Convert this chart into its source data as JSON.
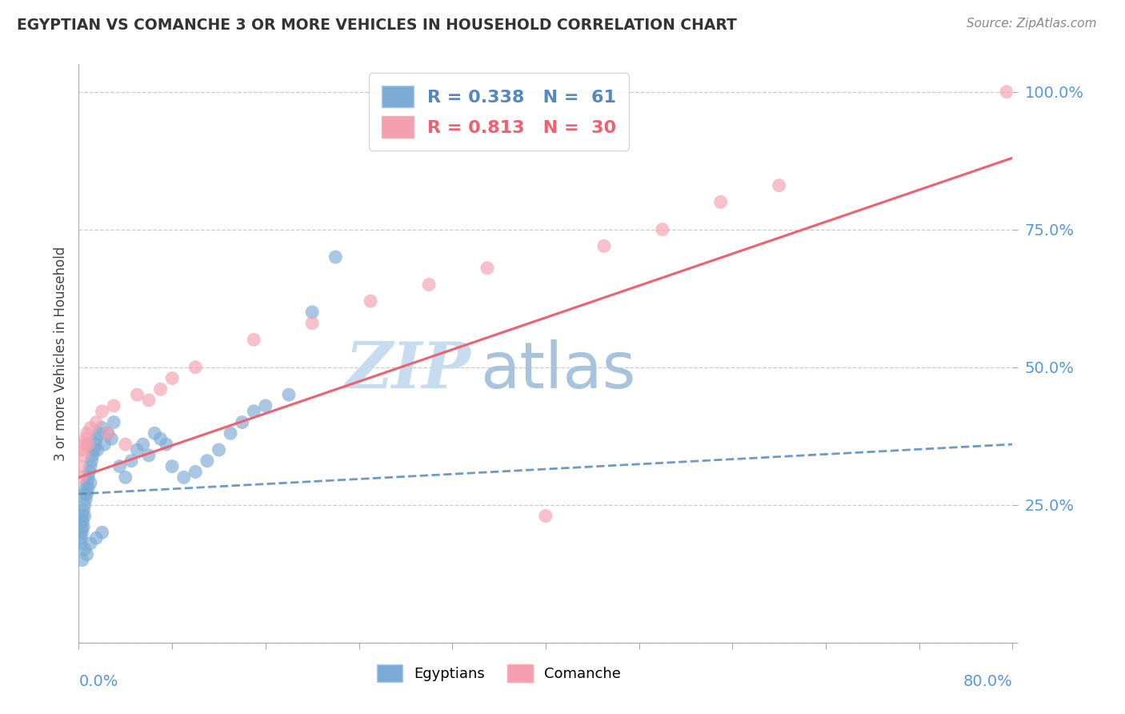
{
  "title": "EGYPTIAN VS COMANCHE 3 OR MORE VEHICLES IN HOUSEHOLD CORRELATION CHART",
  "source": "Source: ZipAtlas.com",
  "xmin": 0.0,
  "xmax": 80.0,
  "ymin": 0.0,
  "ymax": 105.0,
  "ytick_vals": [
    0.0,
    25.0,
    50.0,
    75.0,
    100.0
  ],
  "ytick_labels": [
    "",
    "25.0%",
    "50.0%",
    "75.0%",
    "100.0%"
  ],
  "egyptian_color": "#7BAAD4",
  "comanche_color": "#F4A0B0",
  "egyptian_line_color": "#5588BB",
  "comanche_line_color": "#F06070",
  "watermark_zip": "ZIP",
  "watermark_atlas": "atlas",
  "ylabel": "3 or more Vehicles in Household",
  "legend1_label": "R = 0.338   N =  61",
  "legend2_label": "R = 0.813   N =  30",
  "bottom_legend1": "Egyptians",
  "bottom_legend2": "Comanche",
  "egyptian_x": [
    0.1,
    0.15,
    0.2,
    0.2,
    0.25,
    0.3,
    0.3,
    0.35,
    0.4,
    0.4,
    0.5,
    0.5,
    0.5,
    0.6,
    0.6,
    0.7,
    0.7,
    0.8,
    0.8,
    0.9,
    1.0,
    1.0,
    1.1,
    1.2,
    1.3,
    1.4,
    1.5,
    1.6,
    1.7,
    2.0,
    2.2,
    2.5,
    2.8,
    3.0,
    3.5,
    4.0,
    4.5,
    5.0,
    5.5,
    6.0,
    6.5,
    7.0,
    7.5,
    8.0,
    9.0,
    10.0,
    11.0,
    12.0,
    13.0,
    14.0,
    15.0,
    16.0,
    18.0,
    20.0,
    22.0,
    0.3,
    0.5,
    0.7,
    1.0,
    1.5,
    2.0
  ],
  "egyptian_y": [
    20.0,
    18.0,
    22.0,
    19.0,
    21.0,
    23.0,
    20.0,
    22.0,
    24.0,
    21.0,
    25.0,
    23.0,
    27.0,
    26.0,
    28.0,
    29.0,
    27.0,
    30.0,
    28.0,
    31.0,
    32.0,
    29.0,
    33.0,
    34.0,
    35.0,
    36.0,
    37.0,
    35.0,
    38.0,
    39.0,
    36.0,
    38.0,
    37.0,
    40.0,
    32.0,
    30.0,
    33.0,
    35.0,
    36.0,
    34.0,
    38.0,
    37.0,
    36.0,
    32.0,
    30.0,
    31.0,
    33.0,
    35.0,
    38.0,
    40.0,
    42.0,
    43.0,
    45.0,
    60.0,
    70.0,
    15.0,
    17.0,
    16.0,
    18.0,
    19.0,
    20.0
  ],
  "comanche_x": [
    0.1,
    0.2,
    0.3,
    0.4,
    0.5,
    0.6,
    0.7,
    0.8,
    1.0,
    1.5,
    2.0,
    2.5,
    3.0,
    4.0,
    5.0,
    6.0,
    7.0,
    8.0,
    10.0,
    15.0,
    20.0,
    25.0,
    30.0,
    35.0,
    40.0,
    45.0,
    50.0,
    55.0,
    60.0,
    79.5
  ],
  "comanche_y": [
    32.0,
    30.0,
    35.0,
    34.0,
    36.0,
    37.0,
    38.0,
    36.0,
    39.0,
    40.0,
    42.0,
    38.0,
    43.0,
    36.0,
    45.0,
    44.0,
    46.0,
    48.0,
    50.0,
    55.0,
    58.0,
    62.0,
    65.0,
    68.0,
    23.0,
    72.0,
    75.0,
    80.0,
    83.0,
    100.0
  ],
  "eg_line_x0": 0.0,
  "eg_line_y0": 27.0,
  "eg_line_x1": 80.0,
  "eg_line_y1": 36.0,
  "com_line_x0": 0.0,
  "com_line_y0": 30.0,
  "com_line_x1": 80.0,
  "com_line_y1": 88.0
}
